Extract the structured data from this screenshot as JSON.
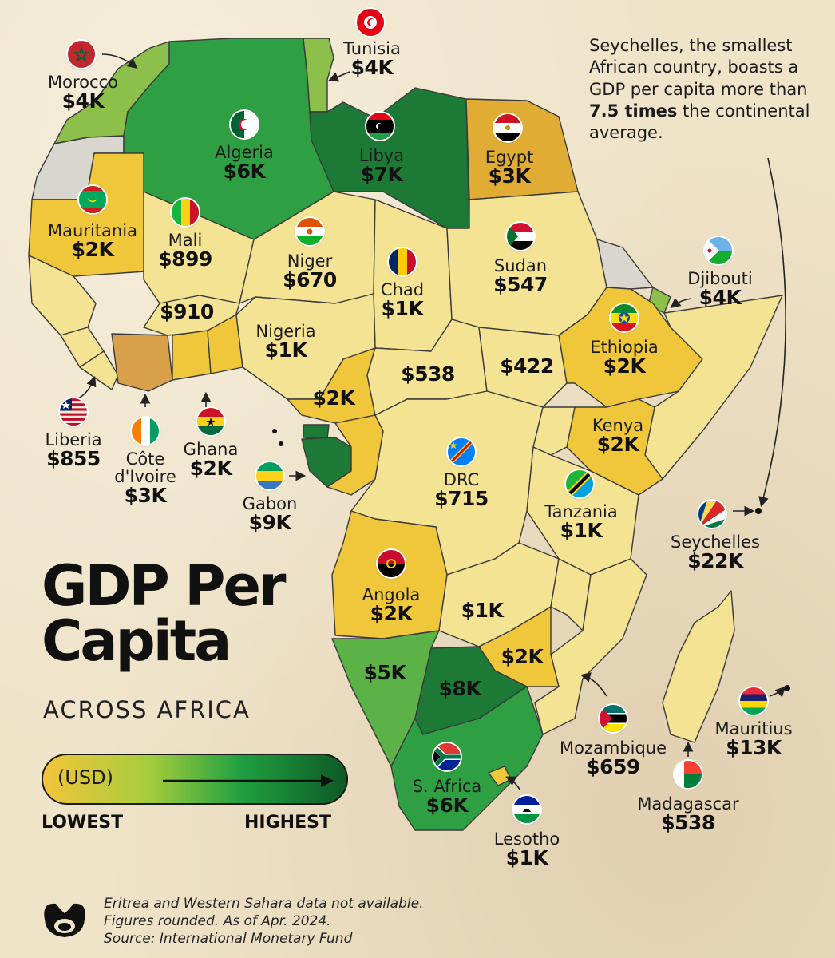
{
  "title_line1": "GDP Per",
  "title_line2": "Capita",
  "subtitle": "ACROSS AFRICA",
  "legend": {
    "unit": "(USD)",
    "low": "LOWEST",
    "high": "HIGHEST",
    "colors": [
      "#f3c43a",
      "#a6cd3c",
      "#20a040",
      "#0d5a26"
    ]
  },
  "note": {
    "text_before": "Seychelles, the smallest African country, boasts a GDP per capita more than ",
    "emphasis": "7.5 times",
    "text_after": " the continental average."
  },
  "footer": {
    "line1": "Eritrea and Western Sahara data not available.",
    "line2": "Figures rounded. As of Apr. 2024.",
    "line3": "Source: International Monetary Fund"
  },
  "countries": {
    "tunisia": {
      "name": "Tunisia",
      "value": "$4K",
      "flag_icon": "tunisia-flag-icon"
    },
    "morocco": {
      "name": "Morocco",
      "value": "$4K",
      "flag_icon": "morocco-flag-icon"
    },
    "algeria": {
      "name": "Algeria",
      "value": "$6K",
      "flag_icon": "algeria-flag-icon"
    },
    "libya": {
      "name": "Libya",
      "value": "$7K",
      "flag_icon": "libya-flag-icon"
    },
    "egypt": {
      "name": "Egypt",
      "value": "$3K",
      "flag_icon": "egypt-flag-icon"
    },
    "mauritania": {
      "name": "Mauritania",
      "value": "$2K",
      "flag_icon": "mauritania-flag-icon"
    },
    "mali": {
      "name": "Mali",
      "value": "$899",
      "flag_icon": "mali-flag-icon"
    },
    "niger": {
      "name": "Niger",
      "value": "$670",
      "flag_icon": "niger-flag-icon"
    },
    "chad": {
      "name": "Chad",
      "value": "$1K",
      "flag_icon": "chad-flag-icon"
    },
    "sudan": {
      "name": "Sudan",
      "value": "$547",
      "flag_icon": "sudan-flag-icon"
    },
    "djibouti": {
      "name": "Djibouti",
      "value": "$4K",
      "flag_icon": "djibouti-flag-icon"
    },
    "burkina": {
      "value": "$910"
    },
    "nigeria": {
      "name": "Nigeria",
      "value": "$1K"
    },
    "ethiopia": {
      "name": "Ethiopia",
      "value": "$2K",
      "flag_icon": "ethiopia-flag-icon"
    },
    "car": {
      "value": "$538"
    },
    "ssudan": {
      "value": "$422"
    },
    "cameroon": {
      "value": "$2K"
    },
    "liberia": {
      "name": "Liberia",
      "value": "$855",
      "flag_icon": "liberia-flag-icon"
    },
    "ivory": {
      "name": "Côte d'Ivoire",
      "name_line1": "Côte",
      "name_line2": "d'Ivoire",
      "value": "$3K",
      "flag_icon": "cote-divoire-flag-icon"
    },
    "ghana": {
      "name": "Ghana",
      "value": "$2K",
      "flag_icon": "ghana-flag-icon"
    },
    "gabon": {
      "name": "Gabon",
      "value": "$9K",
      "flag_icon": "gabon-flag-icon"
    },
    "kenya": {
      "name": "Kenya",
      "value": "$2K"
    },
    "drc": {
      "name": "DRC",
      "value": "$715",
      "flag_icon": "drc-flag-icon"
    },
    "tanzania": {
      "name": "Tanzania",
      "value": "$1K",
      "flag_icon": "tanzania-flag-icon"
    },
    "seychelles": {
      "name": "Seychelles",
      "value": "$22K",
      "flag_icon": "seychelles-flag-icon"
    },
    "angola": {
      "name": "Angola",
      "value": "$2K",
      "flag_icon": "angola-flag-icon"
    },
    "zambia": {
      "value": "$1K"
    },
    "zimbabwe": {
      "value": "$2K"
    },
    "namibia": {
      "value": "$5K"
    },
    "botswana": {
      "value": "$8K"
    },
    "safrica": {
      "name": "S. Africa",
      "value": "$6K",
      "flag_icon": "south-africa-flag-icon"
    },
    "lesotho": {
      "name": "Lesotho",
      "value": "$1K",
      "flag_icon": "lesotho-flag-icon"
    },
    "mozambique": {
      "name": "Mozambique",
      "value": "$659",
      "flag_icon": "mozambique-flag-icon"
    },
    "madagascar": {
      "name": "Madagascar",
      "value": "$538",
      "flag_icon": "madagascar-flag-icon"
    },
    "mauritius": {
      "name": "Mauritius",
      "value": "$13K",
      "flag_icon": "mauritius-flag-icon"
    }
  }
}
